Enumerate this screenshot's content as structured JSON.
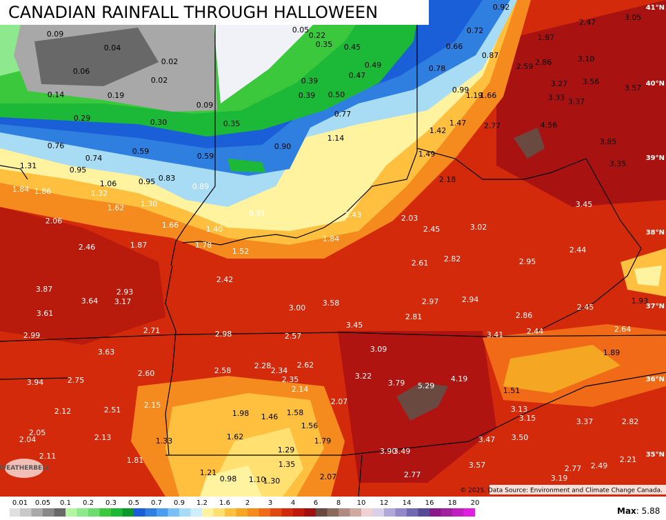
{
  "title": "CANADIAN RAINFALL THROUGH HALLOWEEN",
  "labels": [
    "0.09",
    "0.04",
    "0.06",
    "0.02",
    "0.02",
    "0.14",
    "0.19",
    "0.09",
    "0.29",
    "0.30",
    "0.35",
    "0.05",
    "0.22",
    "0.35",
    "0.45",
    "0.49",
    "0.47",
    "0.39",
    "0.39",
    "0.50",
    "0.77",
    "0.92",
    "0.72",
    "0.66",
    "0.87",
    "0.78",
    "0.99",
    "1.19",
    "1.66",
    "1.87",
    "2.47",
    "3.05",
    "2.59",
    "2.86",
    "3.10",
    "3.27",
    "3.56",
    "3.57",
    "3.33",
    "3.37",
    "4.56",
    "2.77",
    "1.42",
    "1.47",
    "1.14",
    "0.90",
    "0.76",
    "0.59",
    "0.59",
    "0.74",
    "0.95",
    "1.31",
    "1.06",
    "0.95",
    "0.83",
    "0.89",
    "1.49",
    "2.18",
    "3.85",
    "3.35",
    "1.84",
    "1.86",
    "1.32",
    "1.30",
    "1.62",
    "3.45",
    "0.91",
    "1.43",
    "2.06",
    "1.66",
    "1.40",
    "2.03",
    "2.45",
    "3.02",
    "1.84",
    "2.46",
    "1.87",
    "1.78",
    "1.52",
    "2.44",
    "2.61",
    "2.82",
    "2.95",
    "2.42",
    "3.87",
    "2.93",
    "3.64",
    "3.17",
    "3.00",
    "3.58",
    "2.97",
    "2.94",
    "1.93",
    "2.45",
    "3.61",
    "2.81",
    "3.45",
    "2.86",
    "2.71",
    "2.98",
    "2.57",
    "3.41",
    "2.44",
    "2.64",
    "2.99",
    "3.09",
    "3.63",
    "1.89",
    "2.28",
    "2.34",
    "2.62",
    "2.58",
    "2.60",
    "3.22",
    "4.19",
    "3.79",
    "5.29",
    "2.35",
    "3.94",
    "2.75",
    "2.14",
    "1.51",
    "2.07",
    "2.15",
    "3.13",
    "2.12",
    "2.51",
    "1.98",
    "1.46",
    "1.58",
    "3.15",
    "3.37",
    "2.82",
    "1.56",
    "2.05",
    "2.04",
    "2.13",
    "1.62",
    "1.33",
    "1.79",
    "3.47",
    "3.50",
    "1.29",
    "3.90",
    "3.49",
    "2.11",
    "1.81",
    "1.35",
    "2.21",
    "3.57",
    "2.77",
    "2.49",
    "1.21",
    "2.07",
    "2.77",
    "0.98",
    "1.10",
    "1.30",
    "3.19"
  ],
  "latitude_labels": [
    "41°N",
    "40°N",
    "39°N",
    "38°N",
    "37°N",
    "36°N",
    "35°N"
  ],
  "logo": "WEATHERBELL",
  "credit": "© 2025. Data Source: Environment and Climate Change Canada.",
  "legend": {
    "ticks": [
      0.01,
      0.05,
      0.1,
      0.2,
      0.3,
      0.5,
      0.7,
      0.9,
      1.2,
      1.6,
      2,
      3,
      4,
      6,
      8,
      10,
      12,
      14,
      16,
      18,
      20
    ],
    "colors": [
      "#e0e0e0",
      "#c8c8c8",
      "#a8a8a8",
      "#888888",
      "#686868",
      "#b4f5a0",
      "#8ee88e",
      "#6cdc6c",
      "#3cc83c",
      "#1cb838",
      "#0a9a2a",
      "#1a5ed8",
      "#2e7fe0",
      "#4a9ef0",
      "#78c0f5",
      "#a8dcf5",
      "#d0eefa",
      "#fff3a0",
      "#ffe070",
      "#ffc040",
      "#f5a623",
      "#f58a1f",
      "#f06a18",
      "#e04a10",
      "#d42a0c",
      "#c01a0a",
      "#a01010",
      "#6a4a40",
      "#8a6a5a",
      "#b08a80",
      "#d0aaa0",
      "#f0d0d0",
      "#d8d0e8",
      "#b0a8d8",
      "#9088c8",
      "#7068b0",
      "#584898",
      "#8a1a8a",
      "#a020a0",
      "#c020c0",
      "#e020e0"
    ]
  },
  "max": {
    "label": "Max",
    "value": "5.88"
  }
}
